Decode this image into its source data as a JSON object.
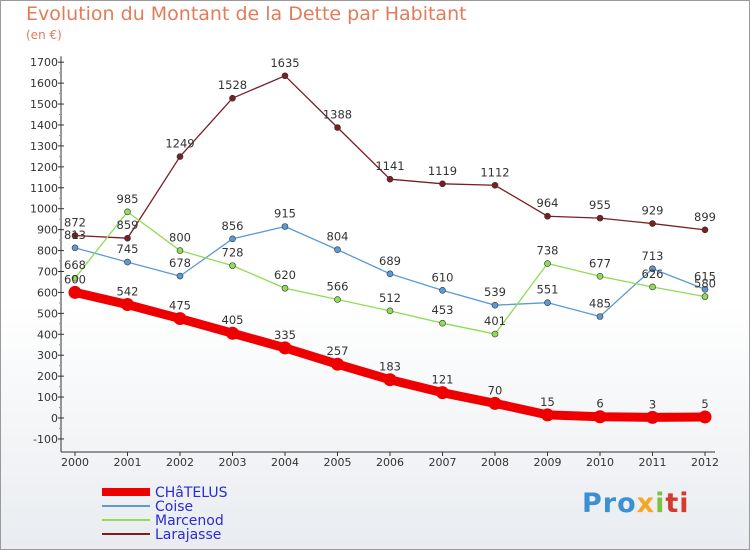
{
  "title": "Evolution du Montant de la Dette par Habitant",
  "unit": "(en €)",
  "logo": {
    "text": "Proxiti"
  },
  "colors": {
    "CHâTELUS": "#ee0000",
    "Coise": "#5b9bd5",
    "Marcenod": "#8fdc55",
    "Larajasse": "#7a1f22",
    "axis": "#333333",
    "legend_text": "#2b2bd6"
  },
  "chart_data": {
    "type": "line",
    "x": [
      "2000",
      "2001",
      "2002",
      "2003",
      "2004",
      "2005",
      "2006",
      "2007",
      "2008",
      "2009",
      "2010",
      "2011",
      "2012"
    ],
    "ylim": [
      -100,
      1700
    ],
    "yticks": [
      -100,
      0,
      100,
      200,
      300,
      400,
      500,
      600,
      700,
      800,
      900,
      1000,
      1100,
      1200,
      1300,
      1400,
      1500,
      1600,
      1700
    ],
    "grid": false,
    "legend_position": "bottom-left",
    "series": [
      {
        "name": "CHâTELUS",
        "values": [
          600,
          542,
          475,
          405,
          335,
          257,
          183,
          121,
          70,
          15,
          6,
          3,
          5
        ]
      },
      {
        "name": "Coise",
        "values": [
          813,
          745,
          678,
          856,
          915,
          804,
          689,
          610,
          539,
          551,
          485,
          713,
          615
        ]
      },
      {
        "name": "Marcenod",
        "values": [
          668,
          985,
          800,
          728,
          620,
          566,
          512,
          453,
          401,
          738,
          677,
          626,
          580
        ]
      },
      {
        "name": "Larajasse",
        "values": [
          872,
          859,
          1249,
          1528,
          1635,
          1388,
          1141,
          1119,
          1112,
          964,
          955,
          929,
          899
        ]
      }
    ]
  }
}
